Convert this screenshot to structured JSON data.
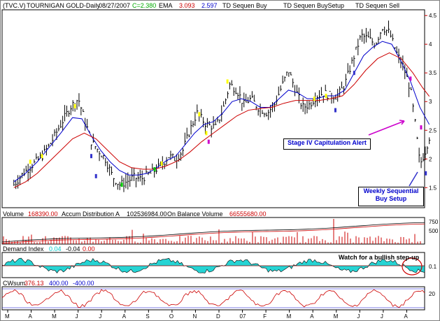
{
  "header": {
    "symbol": "(TVC.V)",
    "name": "TOURNIGAN GOLD-Daily",
    "date": "08/27/2007",
    "change": "C=2.380",
    "ema_label": "EMA",
    "ema1": "3.093",
    "ema2": "2.597",
    "td_buy": "TD Sequen Buy",
    "td_buysetup": "TD Sequen BuySetup",
    "td_sell": "TD Sequen Sell"
  },
  "annotations": {
    "capitulation": "Stage IV Capitulation Alert",
    "weekly_line1": "Weekly Sequential",
    "weekly_line2": "Buy Setup",
    "step_up": "Watch for a bullish step-up"
  },
  "volume_panel": {
    "volume_label": "Volume",
    "volume_value": "168390.00",
    "ad_label": "Accum Distribution A",
    "ad_value": "102536984.00",
    "obv_label": "On Balance Volume",
    "obv_value": "66555680.00",
    "ticks": [
      "750",
      "500"
    ]
  },
  "demand_panel": {
    "label": "Demand Index",
    "v1": "0.04",
    "v2": "-0.04",
    "v3": "0.00",
    "ticks": [
      "0.1"
    ]
  },
  "cwsum_panel": {
    "label": "CWsum",
    "v1": "376.13",
    "v2": "400.00",
    "v3": "-400.00",
    "ticks": [
      "20"
    ]
  },
  "colors": {
    "price": "#000000",
    "ema_fast": "#0000cc",
    "ema_slow": "#cc0000",
    "buy_marker": "#ffff00",
    "setup_marker": "#3333cc",
    "sell_marker": "#cc00cc",
    "green_marker": "#00cc00",
    "volume": "#cc0000",
    "demand_fill": "#00cccc",
    "axis": "#cc0000"
  },
  "chart_data": {
    "type": "line",
    "title": "(TVC.V) TOURNIGAN GOLD-Daily 08/27/2007",
    "x_labels": [
      "M",
      "A",
      "M",
      "J",
      "J",
      "A",
      "S",
      "O",
      "N",
      "D",
      "07",
      "F",
      "M",
      "A",
      "M",
      "J",
      "J",
      "A"
    ],
    "y_ticks": [
      1.5,
      2,
      2.5,
      3,
      3.5,
      4,
      4.5
    ],
    "ylim": [
      1.15,
      4.6
    ],
    "series": [
      {
        "name": "price",
        "points": [
          [
            0,
            1.55
          ],
          [
            0.4,
            1.75
          ],
          [
            0.8,
            1.9
          ],
          [
            1.2,
            2.05
          ],
          [
            1.6,
            2.3
          ],
          [
            2.0,
            2.6
          ],
          [
            2.4,
            2.9
          ],
          [
            2.75,
            3.05
          ],
          [
            3.0,
            2.7
          ],
          [
            3.3,
            2.3
          ],
          [
            3.6,
            2.15
          ],
          [
            3.9,
            2.0
          ],
          [
            4.2,
            1.7
          ],
          [
            4.5,
            1.55
          ],
          [
            4.8,
            1.6
          ],
          [
            5.1,
            1.68
          ],
          [
            5.4,
            1.65
          ],
          [
            5.7,
            1.72
          ],
          [
            6.0,
            1.8
          ],
          [
            6.3,
            1.9
          ],
          [
            6.6,
            2.05
          ],
          [
            6.9,
            2.0
          ],
          [
            7.2,
            2.15
          ],
          [
            7.5,
            2.5
          ],
          [
            7.8,
            2.8
          ],
          [
            8.2,
            2.6
          ],
          [
            8.6,
            2.55
          ],
          [
            8.9,
            2.85
          ],
          [
            9.2,
            3.3
          ],
          [
            9.5,
            3.2
          ],
          [
            9.8,
            2.95
          ],
          [
            10.1,
            3.05
          ],
          [
            10.4,
            2.9
          ],
          [
            10.8,
            2.8
          ],
          [
            11.1,
            2.95
          ],
          [
            11.4,
            3.25
          ],
          [
            11.7,
            3.55
          ],
          [
            12.0,
            3.2
          ],
          [
            12.3,
            2.9
          ],
          [
            12.6,
            2.95
          ],
          [
            12.9,
            3.1
          ],
          [
            13.2,
            3.15
          ],
          [
            13.5,
            3.1
          ],
          [
            13.8,
            3.1
          ],
          [
            14.1,
            3.3
          ],
          [
            14.5,
            3.8
          ],
          [
            14.8,
            4.15
          ],
          [
            15.1,
            4.1
          ],
          [
            15.4,
            4.0
          ],
          [
            15.7,
            4.3
          ],
          [
            16.0,
            4.2
          ],
          [
            16.3,
            3.85
          ],
          [
            16.6,
            3.6
          ],
          [
            16.9,
            3.2
          ],
          [
            17.1,
            2.6
          ],
          [
            17.3,
            1.9
          ],
          [
            17.5,
            2.1
          ],
          [
            17.7,
            2.38
          ]
        ]
      },
      {
        "name": "ema_fast",
        "points": [
          [
            0,
            1.6
          ],
          [
            0.5,
            1.75
          ],
          [
            1.0,
            1.95
          ],
          [
            1.5,
            2.2
          ],
          [
            2.0,
            2.45
          ],
          [
            2.5,
            2.72
          ],
          [
            2.9,
            2.7
          ],
          [
            3.3,
            2.4
          ],
          [
            3.7,
            2.15
          ],
          [
            4.1,
            1.95
          ],
          [
            4.5,
            1.8
          ],
          [
            4.9,
            1.72
          ],
          [
            5.3,
            1.72
          ],
          [
            5.7,
            1.75
          ],
          [
            6.1,
            1.85
          ],
          [
            6.5,
            1.97
          ],
          [
            6.9,
            2.05
          ],
          [
            7.3,
            2.25
          ],
          [
            7.7,
            2.45
          ],
          [
            8.1,
            2.6
          ],
          [
            8.5,
            2.65
          ],
          [
            8.9,
            2.8
          ],
          [
            9.3,
            3.0
          ],
          [
            9.7,
            3.05
          ],
          [
            10.1,
            3.0
          ],
          [
            10.5,
            2.9
          ],
          [
            10.9,
            2.9
          ],
          [
            11.3,
            3.05
          ],
          [
            11.7,
            3.2
          ],
          [
            12.1,
            3.15
          ],
          [
            12.5,
            3.05
          ],
          [
            12.9,
            3.05
          ],
          [
            13.3,
            3.1
          ],
          [
            13.7,
            3.1
          ],
          [
            14.1,
            3.2
          ],
          [
            14.5,
            3.5
          ],
          [
            14.9,
            3.8
          ],
          [
            15.3,
            3.95
          ],
          [
            15.7,
            4.05
          ],
          [
            16.1,
            4.0
          ],
          [
            16.5,
            3.7
          ],
          [
            16.9,
            3.35
          ],
          [
            17.3,
            2.9
          ],
          [
            17.7,
            2.6
          ]
        ]
      },
      {
        "name": "ema_slow",
        "points": [
          [
            0,
            1.5
          ],
          [
            0.5,
            1.6
          ],
          [
            1.0,
            1.75
          ],
          [
            1.5,
            1.95
          ],
          [
            2.0,
            2.15
          ],
          [
            2.5,
            2.35
          ],
          [
            3.0,
            2.45
          ],
          [
            3.5,
            2.35
          ],
          [
            4.0,
            2.15
          ],
          [
            4.5,
            1.95
          ],
          [
            5.0,
            1.85
          ],
          [
            5.5,
            1.82
          ],
          [
            6.0,
            1.82
          ],
          [
            6.5,
            1.88
          ],
          [
            7.0,
            1.97
          ],
          [
            7.5,
            2.12
          ],
          [
            8.0,
            2.3
          ],
          [
            8.5,
            2.45
          ],
          [
            9.0,
            2.6
          ],
          [
            9.5,
            2.75
          ],
          [
            10.0,
            2.85
          ],
          [
            10.5,
            2.88
          ],
          [
            11.0,
            2.9
          ],
          [
            11.5,
            2.97
          ],
          [
            12.0,
            3.02
          ],
          [
            12.5,
            3.02
          ],
          [
            13.0,
            3.02
          ],
          [
            13.5,
            3.05
          ],
          [
            14.0,
            3.1
          ],
          [
            14.5,
            3.3
          ],
          [
            15.0,
            3.55
          ],
          [
            15.5,
            3.75
          ],
          [
            16.0,
            3.85
          ],
          [
            16.5,
            3.75
          ],
          [
            17.0,
            3.5
          ],
          [
            17.4,
            3.25
          ],
          [
            17.7,
            3.09
          ]
        ]
      }
    ]
  }
}
